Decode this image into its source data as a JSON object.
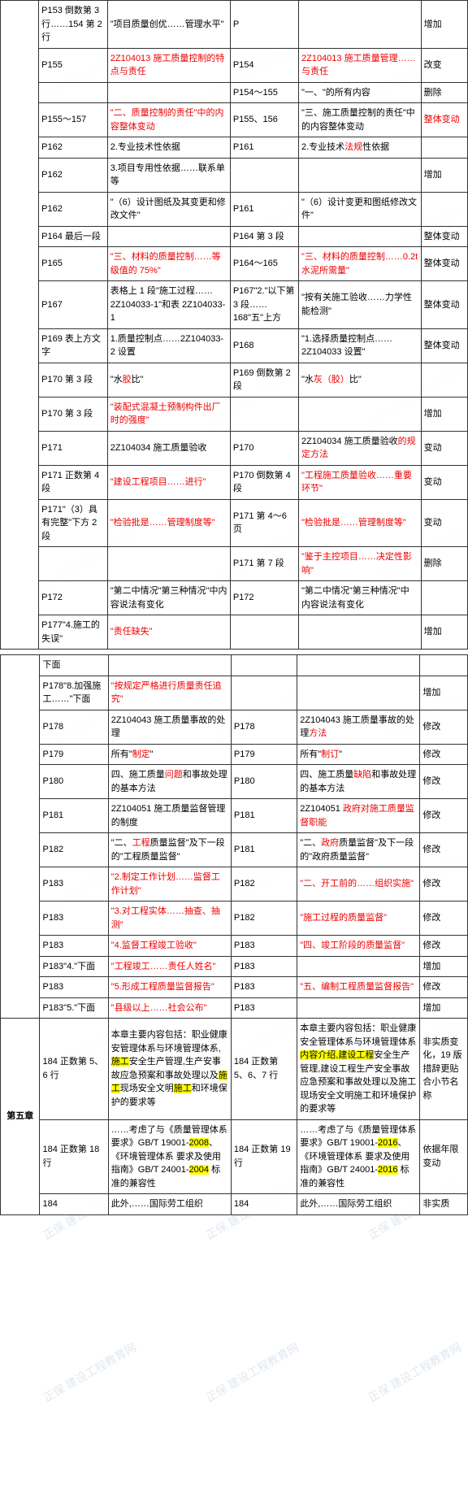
{
  "chapter5": "第五章",
  "rows1": [
    {
      "c2": "P153 倒数第 3 行……154 第 2 行",
      "c3": "\"项目质量创优……管理水平\"",
      "c4": "P",
      "c5": "",
      "c6": "增加"
    },
    {
      "c2": "P155",
      "c3": "2Z104013 施工质量控制的特点与责任",
      "c3cls": "red",
      "c4": "P154",
      "c5": "2Z104013 施工质量管理……与责任",
      "c5cls": "red",
      "c6": "改变"
    },
    {
      "c2": "",
      "c3": "",
      "c4": "P154～155",
      "c5": "\"一、\"的所有内容",
      "c6": "删除"
    },
    {
      "c2": "P155～157",
      "c3": "\"二、质量控制的责任\"中的内容整体变动",
      "c3cls": "red",
      "c4": "P155、156",
      "c5": "\"三、施工质量控制的责任\"中的内容整体变动",
      "c6": "整体变动",
      "c6cls": "red"
    },
    {
      "c2": "P162",
      "c3": "2.专业技术性依据",
      "c4": "P161",
      "c5": "2.专业技术法规性依据",
      "c5p": "法规",
      "c6": ""
    },
    {
      "c2": "P162",
      "c3": "3.项目专用性依据……联系单等",
      "c4": "",
      "c5": "",
      "c6": "增加"
    },
    {
      "c2": "P162",
      "c3": "\"（6）设计图纸及其变更和修改文件\"",
      "c4": "P161",
      "c5": "\"（6）设计变更和图纸修改文件\"",
      "c6": ""
    },
    {
      "c2": "P164 最后一段",
      "c3": "",
      "c4": "P164 第 3 段",
      "c5": "",
      "c6": "整体变动"
    },
    {
      "c2": "P165",
      "c3": "\"三、材料的质量控制……等级值的 75%\"",
      "c3cls": "red",
      "c4": "P164～165",
      "c5": "\"三、材料的质量控制……0.2t 水泥所需量\"",
      "c5cls": "red",
      "c6": "整体变动"
    },
    {
      "c2": "P167",
      "c3": "表格上 1 段\"施工过程……2Z104033-1\"和表 2Z104033-1",
      "c4": "P167\"2.\"以下第 3 段……168\"五\"上方",
      "c5": "\"按有关施工验收……力学性能检测\"",
      "c6": "整体变动"
    },
    {
      "c2": "P169 表上方文字",
      "c3": "1.质量控制点……2Z104033-2 设置",
      "c4": "P168",
      "c5": "\"1.选择质量控制点……2Z104033 设置\"",
      "c6": "整体变动"
    },
    {
      "c2": "P170 第 3 段",
      "c3": "\"水胶比\"",
      "c3p": "胶",
      "c4": "P169 倒数第 2 段",
      "c5": "\"水灰（胶）比\"",
      "c5p": "灰（胶）",
      "c6": ""
    },
    {
      "c2": "P170 第 3 段",
      "c3": "\"装配式混凝土预制构件出厂时的强度\"",
      "c3cls": "red",
      "c4": "",
      "c5": "",
      "c6": "增加"
    },
    {
      "c2": "P171",
      "c3": "2Z104034 施工质量验收",
      "c4": "P170",
      "c5": "2Z104034 施工质量验收的规定方法",
      "c5p": "的规定方法",
      "c6": "变动"
    },
    {
      "c2": "P171 正数第 4 段",
      "c3": "\"建设工程项目……进行\"",
      "c3cls": "red",
      "c4": "P170 倒数第 4 段",
      "c5": "\"工程施工质量验收……重要环节\"",
      "c5cls": "red",
      "c6": "变动"
    },
    {
      "c2": "P171\"（3）具有完整\"下方 2 段",
      "c3": "\"检验批是……管理制度等\"",
      "c3cls": "red",
      "c4": "P171 第 4～6 页",
      "c5": "\"检验批是……管理制度等\"",
      "c5cls": "red",
      "c6": "变动"
    },
    {
      "c2": "",
      "c3": "",
      "c4": "P171 第 7 段",
      "c5": "\"鉴于主控项目……决定性影响\"",
      "c5cls": "red",
      "c6": "删除"
    },
    {
      "c2": "P172",
      "c3": "\"第二中情况\"第三种情况\"中内容说法有变化",
      "c4": "P172",
      "c5": "\"第二中情况\"第三种情况\"中内容说法有变化",
      "c6": ""
    },
    {
      "c2": "P177\"4.施工的失误\"",
      "c3": "\"责任缺失\"",
      "c3cls": "red",
      "c4": "",
      "c5": "",
      "c6": "增加"
    }
  ],
  "headerRow": {
    "c2": "下面",
    "c3": "",
    "c4": "",
    "c5": "",
    "c6": ""
  },
  "rows2": [
    {
      "c2": "P178\"8.加强施工……\"下面",
      "c3": "\"按规定严格进行质量责任追究\"",
      "c3cls": "red",
      "c4": "",
      "c5": "",
      "c6": "增加"
    },
    {
      "c2": "P178",
      "c3": "2Z104043 施工质量事故的处理",
      "c4": "P178",
      "c5": "2Z104043 施工质量事故的处理方法",
      "c5p": "方法",
      "c6": "修改"
    },
    {
      "c2": "P179",
      "c3": "所有\"制定\"",
      "c3p": "制定",
      "c4": "P179",
      "c5": "所有\"制订\"",
      "c5p": "制订",
      "c6": "修改"
    },
    {
      "c2": "P180",
      "c3": "四、施工质量问题和事故处理的基本方法",
      "c3p": "问题",
      "c4": "P180",
      "c5": "四、施工质量缺陷和事故处理的基本方法",
      "c5p": "缺陷",
      "c6": "修改"
    },
    {
      "c2": "P181",
      "c3": "2Z104051 施工质量监督管理的制度",
      "c4": "P181",
      "c5": "2Z104051 政府对施工质量监督职能",
      "c5p": "政府对施工质量监督职能",
      "c6": "修改"
    },
    {
      "c2": "P182",
      "c3": "\"二、工程质量监督\"及下一段的\"工程质量监督\"",
      "c3p": "工程",
      "c4": "P181",
      "c5": "\"二、政府质量监督\"及下一段的\"政府质量监督\"",
      "c5p": "政府",
      "c6": "修改"
    },
    {
      "c2": "P183",
      "c3": "\"2.制定工作计划……监督工作计划\"",
      "c3cls": "red",
      "c4": "P182",
      "c5": "\"二、开工前的……组织实施\"",
      "c5cls": "red",
      "c6": "修改"
    },
    {
      "c2": "P183",
      "c3": "\"3.对工程实体……抽查、抽测\"",
      "c3cls": "red",
      "c4": "P182",
      "c5": "\"施工过程的质量监督\"",
      "c5cls": "red",
      "c6": "修改"
    },
    {
      "c2": "P183",
      "c3": "\"4.监督工程竣工验收\"",
      "c3cls": "red",
      "c4": "P183",
      "c5": "\"四、竣工阶段的质量监督\"",
      "c5cls": "red",
      "c6": "修改"
    },
    {
      "c2": "P183\"4.\"下面",
      "c3": "\"工程竣工……责任人姓名\"",
      "c3cls": "red",
      "c4": "P183",
      "c5": "",
      "c6": "增加"
    },
    {
      "c2": "P183",
      "c3": "\"5.形成工程质量监督报告\"",
      "c3cls": "red",
      "c4": "P183",
      "c5": "\"五、编制工程质量监督报告\"",
      "c5cls": "red",
      "c6": "修改"
    },
    {
      "c2": "P183\"5.\"下面",
      "c3": "\"县级以上……社会公布\"",
      "c3cls": "red",
      "c4": "P183",
      "c5": "",
      "c6": "增加"
    },
    {
      "c1": "第五章",
      "c2": "184 正数第 5、6 行",
      "c3": "本章主要内容包括：职业健康安管理体系与环境管理体系,施工安全生产管理,生产安事故应急预案和事故处理以及施工现场安全文明施工和环境保护的要求等",
      "c3hl": "施工",
      "c4": "184 正数第 5、6、7 行",
      "c5": "本章主要内容包括：职业健康安全管理体系与环境管理体系内容介绍,建设工程安全生产管理,建设工程生产安全事故应急预案和事故处理以及施工现场安全文明施工和环境保护的要求等",
      "c5hl": "内容介绍,建设工程",
      "c6": "非实质变化，19 版措辞更贴合小节名称"
    },
    {
      "c2": "184 正数第 18 行",
      "c3": "……考虑了与《质量管理体系 要求》GB/T 19001-2008、《环境管理体系 要求及使用指南》GB/T 24001-2004 标准的兼容性",
      "c3hl": "2008|2004",
      "c4": "184 正数第 19 行",
      "c5": "……考虑了与《质量管理体系 要求》GB/T 19001-2016、《环境管理体系 要求及使用指南》GB/T 24001-2016 标准的兼容性",
      "c5hl": "2016",
      "c6": "依据年限变动"
    },
    {
      "c2": "184",
      "c3": "此外,……国际劳工组织",
      "c4": "184",
      "c5": "此外,……国际劳工组织",
      "c6": "非实质"
    }
  ]
}
